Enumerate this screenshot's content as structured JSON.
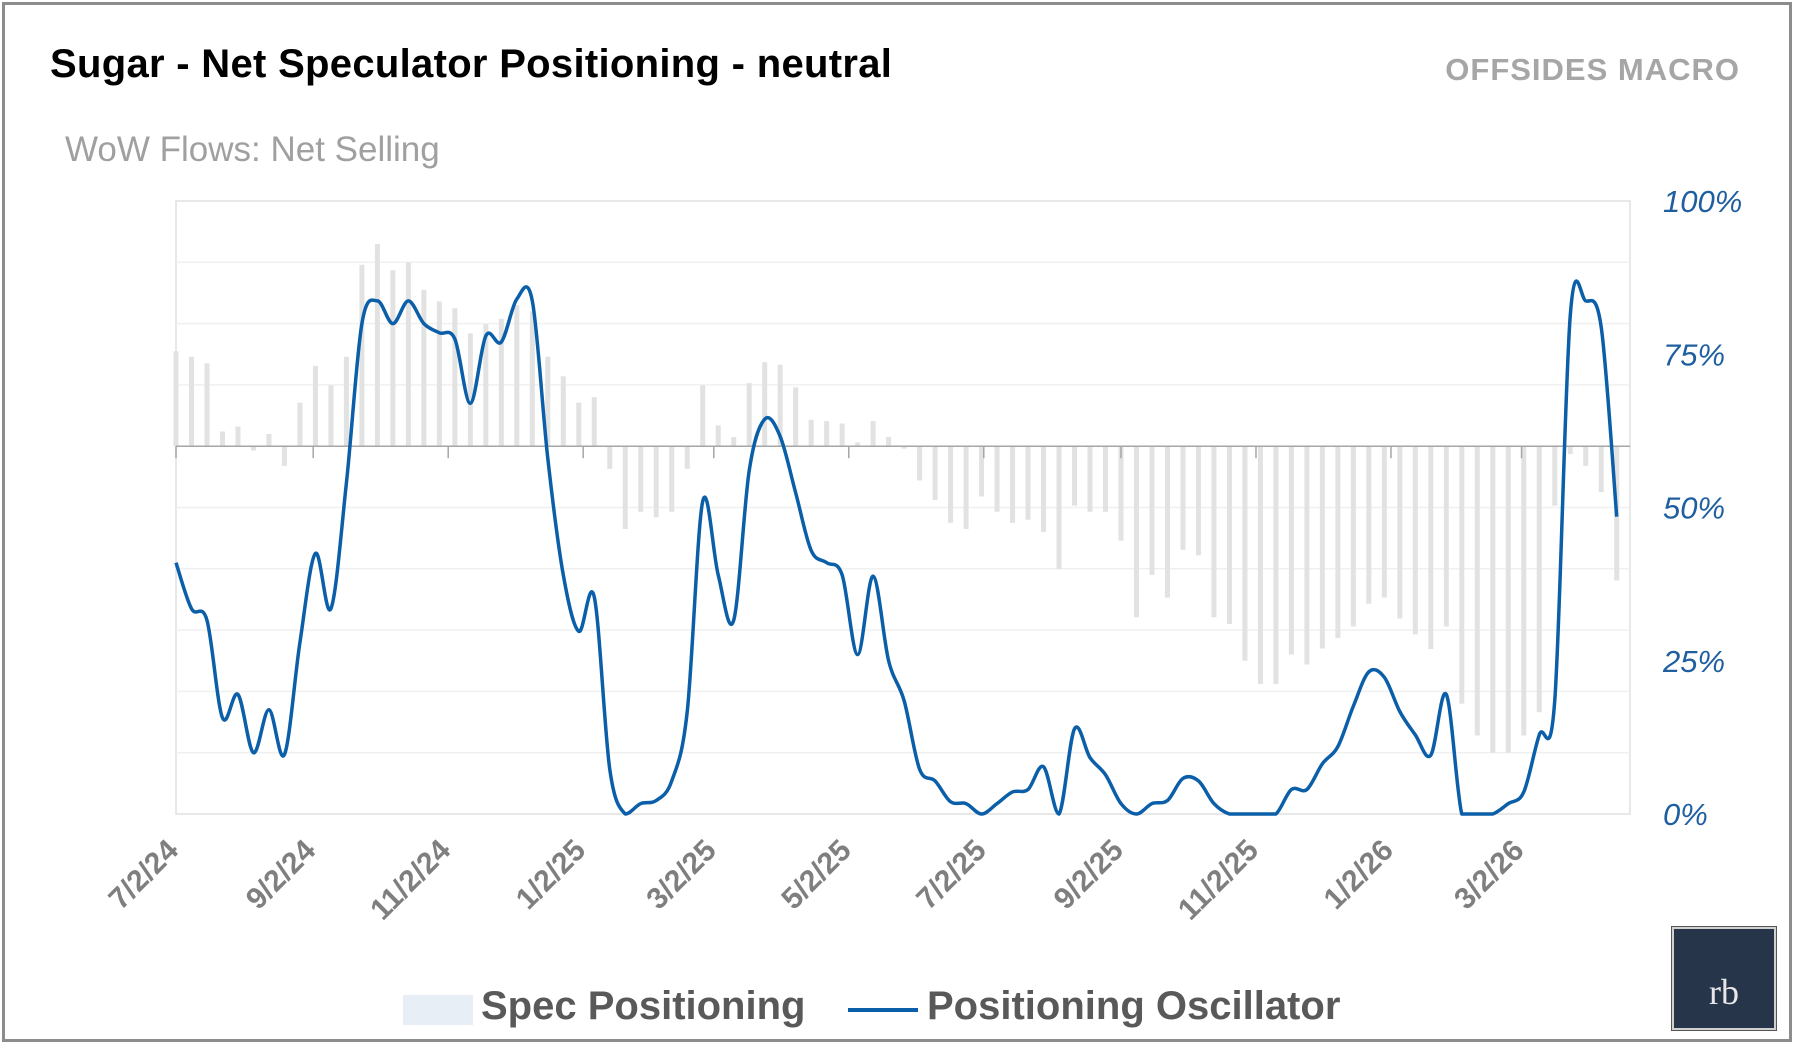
{
  "header": {
    "title": "Sugar - Net Speculator Positioning - neutral",
    "brand": "OFFSIDES MACRO",
    "subtitle": "WoW Flows: Net Selling"
  },
  "logo": {
    "text": "rb"
  },
  "colors": {
    "line": "#0b5ea8",
    "bars": "#e2e2e2",
    "axis_labels": "#1f5fa0",
    "x_labels": "#7f7f7f"
  },
  "chart_data": {
    "type": "bar+line",
    "x_axis": {
      "type": "date",
      "tick_labels": [
        "7/2/24",
        "9/2/24",
        "11/2/24",
        "1/2/25",
        "3/2/25",
        "5/2/25",
        "7/2/25",
        "9/2/25",
        "11/2/25",
        "1/2/26",
        "3/2/26"
      ],
      "range": [
        "2024-07-02",
        "2026-04-20"
      ]
    },
    "y_axis_right": {
      "tick_labels": [
        "0%",
        "25%",
        "50%",
        "75%",
        "100%"
      ],
      "range": [
        0,
        100
      ],
      "grid": true
    },
    "y_axis_secondary": {
      "visible": false,
      "range": [
        -60,
        40
      ]
    },
    "dates": [
      "2024-07-02",
      "2024-07-09",
      "2024-07-16",
      "2024-07-23",
      "2024-07-30",
      "2024-08-06",
      "2024-08-13",
      "2024-08-20",
      "2024-08-27",
      "2024-09-03",
      "2024-09-10",
      "2024-09-17",
      "2024-09-24",
      "2024-10-01",
      "2024-10-08",
      "2024-10-15",
      "2024-10-22",
      "2024-10-29",
      "2024-11-05",
      "2024-11-12",
      "2024-11-19",
      "2024-11-26",
      "2024-12-03",
      "2024-12-10",
      "2024-12-17",
      "2024-12-24",
      "2024-12-31",
      "2025-01-07",
      "2025-01-14",
      "2025-01-21",
      "2025-01-28",
      "2025-02-04",
      "2025-02-11",
      "2025-02-18",
      "2025-02-25",
      "2025-03-04",
      "2025-03-11",
      "2025-03-18",
      "2025-03-25",
      "2025-04-01",
      "2025-04-08",
      "2025-04-15",
      "2025-04-22",
      "2025-04-29",
      "2025-05-06",
      "2025-05-13",
      "2025-05-20",
      "2025-05-27",
      "2025-06-03",
      "2025-06-10",
      "2025-06-17",
      "2025-06-24",
      "2025-07-01",
      "2025-07-08",
      "2025-07-15",
      "2025-07-22",
      "2025-07-29",
      "2025-08-05",
      "2025-08-12",
      "2025-08-19",
      "2025-08-26",
      "2025-09-02",
      "2025-09-09",
      "2025-09-16",
      "2025-09-23",
      "2025-09-30",
      "2025-10-07",
      "2025-10-14",
      "2025-10-21",
      "2025-10-28",
      "2025-11-04",
      "2025-11-11",
      "2025-11-18",
      "2025-11-25",
      "2025-12-02",
      "2025-12-09",
      "2025-12-16",
      "2025-12-23",
      "2025-12-30",
      "2026-01-06",
      "2026-01-13",
      "2026-01-20",
      "2026-01-27",
      "2026-02-03",
      "2026-02-10",
      "2026-02-17",
      "2026-02-24",
      "2026-03-03",
      "2026-03-10",
      "2026-03-17",
      "2026-03-24",
      "2026-03-31",
      "2026-04-07",
      "2026-04-14"
    ],
    "series": [
      {
        "name": "Spec Positioning",
        "type": "bar",
        "axis": "secondary",
        "values": [
          15.5,
          14.6,
          13.5,
          2.4,
          3.2,
          -0.7,
          2,
          -3.2,
          7.1,
          13.1,
          9.9,
          14.6,
          29.6,
          33,
          28.7,
          30,
          25.5,
          23.6,
          22.5,
          18.4,
          19.9,
          20.8,
          23,
          22,
          14.6,
          11.4,
          7.1,
          8,
          -3.7,
          -13.5,
          -10.7,
          -11.6,
          -10.7,
          -3.7,
          9.9,
          3.4,
          1.5,
          10.3,
          13.7,
          13.3,
          9.6,
          4.3,
          4.1,
          3.7,
          0.6,
          4.1,
          1.5,
          -0.4,
          -5.6,
          -8.8,
          -12.5,
          -13.5,
          -8.2,
          -10.7,
          -12.5,
          -12,
          -14,
          -20,
          -9.7,
          -10.7,
          -10.7,
          -15.4,
          -27.9,
          -21,
          -24.7,
          -16.9,
          -17.8,
          -27.9,
          -29,
          -35,
          -38.8,
          -38.8,
          -34,
          -35.6,
          -33,
          -31.3,
          -29.4,
          -25.7,
          -24.7,
          -28.1,
          -30.7,
          -33.1,
          -29.4,
          -42,
          -47.2,
          -50,
          -50,
          -47.2,
          -43.4,
          -9.7,
          -1.3,
          -3.2,
          -7.5,
          -21.9
        ]
      },
      {
        "name": "Positioning Oscillator",
        "type": "line",
        "axis": "right",
        "values": [
          41,
          33.5,
          31.6,
          15.7,
          19.5,
          10,
          17,
          9.7,
          28,
          42.5,
          33.5,
          54,
          80,
          83.7,
          80,
          83.7,
          80,
          78.5,
          77.5,
          67,
          78,
          77,
          84,
          83.7,
          58,
          39,
          29.8,
          35.4,
          7.3,
          0,
          1.7,
          2.2,
          5.4,
          16.7,
          51,
          39,
          31.6,
          56,
          64.4,
          61.6,
          52.4,
          43,
          41,
          39,
          26,
          38.8,
          25,
          18.5,
          7.3,
          5.4,
          2,
          1.7,
          0,
          1.7,
          3.6,
          4,
          7.7,
          0,
          13.9,
          9.2,
          6.4,
          1.7,
          0,
          1.7,
          2.2,
          5.8,
          5.4,
          1.7,
          0,
          0,
          0,
          0,
          4,
          4,
          8.2,
          11,
          17.6,
          23.2,
          22.3,
          16.7,
          12.9,
          9.6,
          19.5,
          0,
          0,
          0,
          1.7,
          3.6,
          12.9,
          18.5,
          81.3,
          83.7,
          79.4,
          48.5
        ]
      }
    ],
    "legend": {
      "position": "bottom",
      "entries": [
        "Spec Positioning",
        "Positioning Oscillator"
      ]
    }
  }
}
